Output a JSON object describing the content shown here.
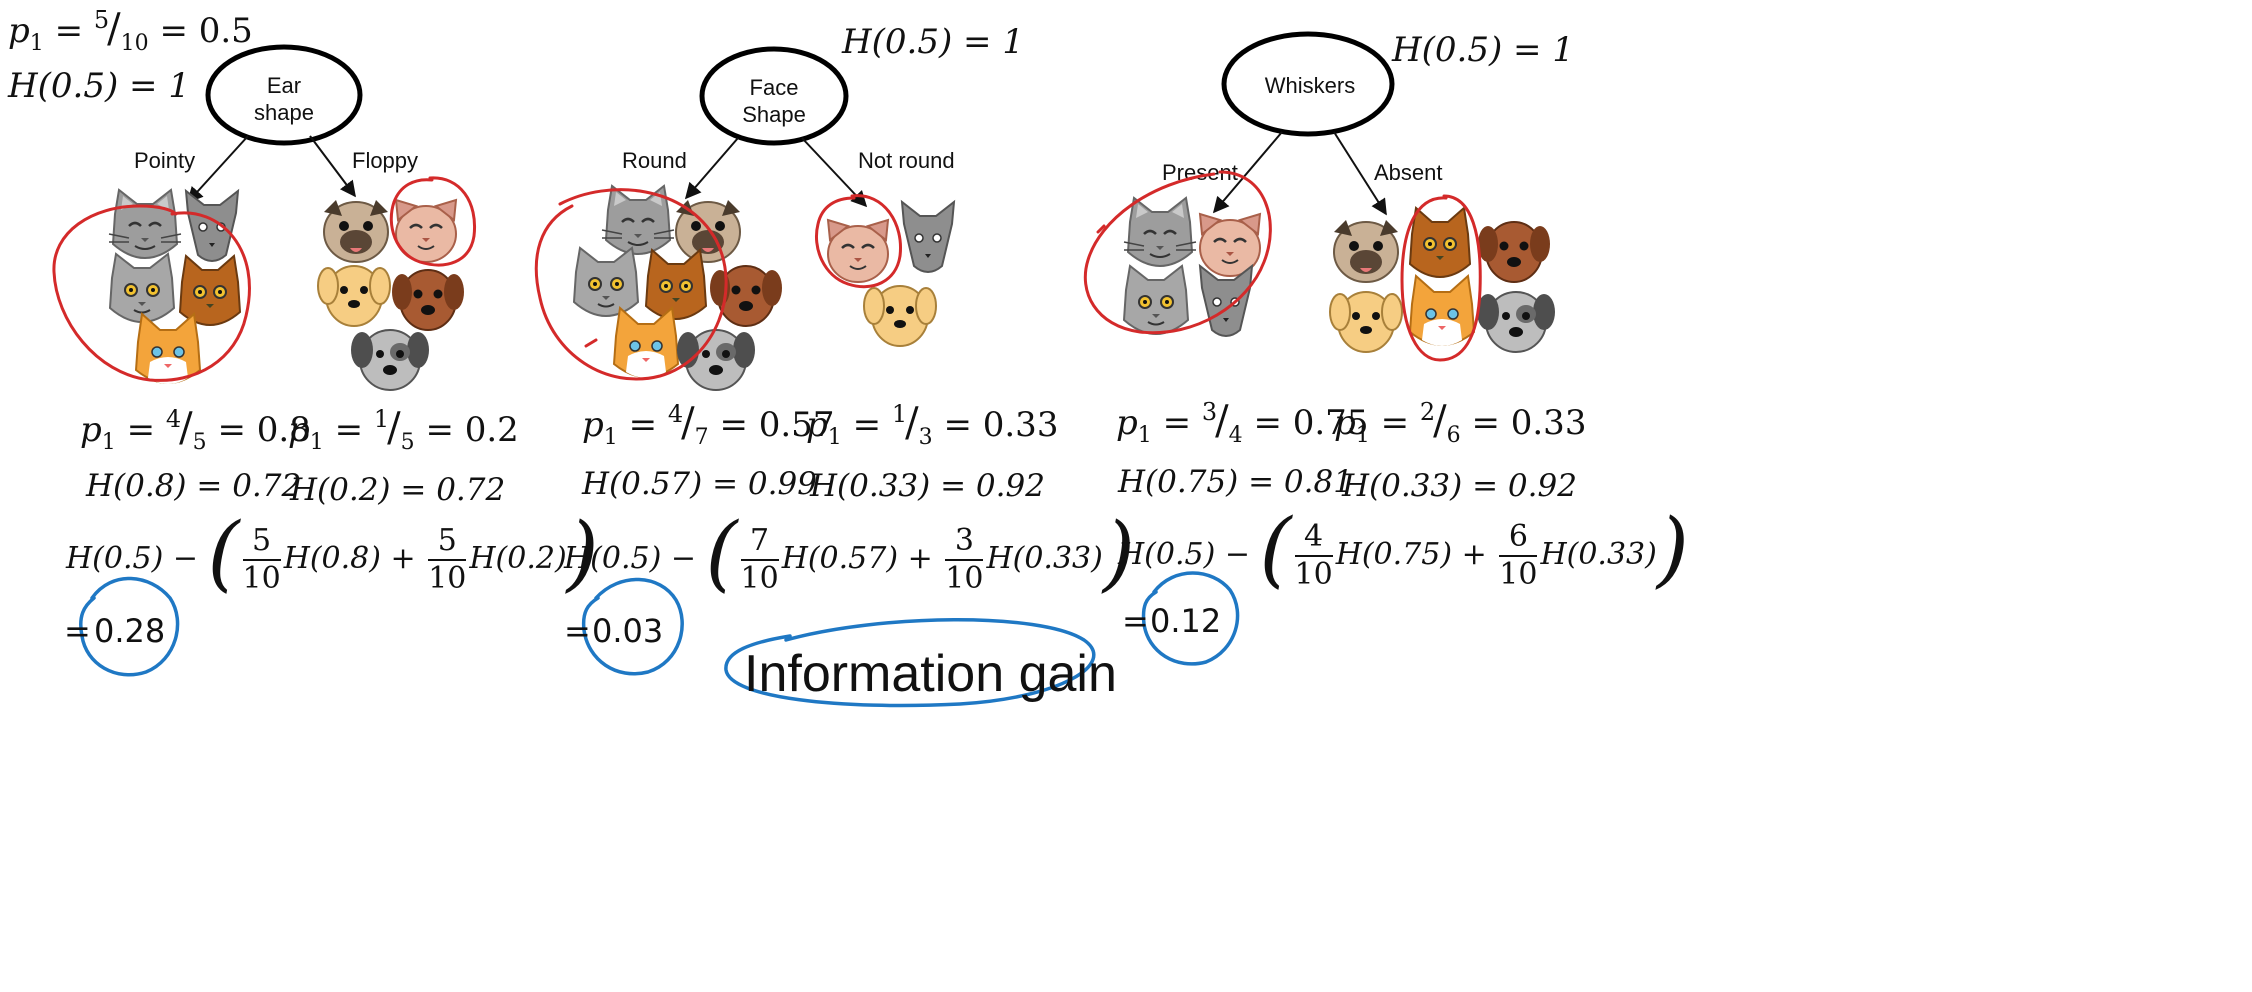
{
  "top_left": {
    "p1_prefix": "p",
    "p1_sub": "1",
    "p1_eq": " = ",
    "p1_num": "5",
    "p1_den": "10",
    "p1_val": " = 0.5",
    "h_root": "H(0.5) = 1"
  },
  "trees": [
    {
      "root_h": "",
      "node_line1": "Ear",
      "node_line2": "shape",
      "left_branch": "Pointy",
      "right_branch": "Floppy",
      "left_p_num": "4",
      "left_p_den": "5",
      "left_p_val": " = 0.8",
      "right_p_num": "1",
      "right_p_den": "5",
      "right_p_val": " = 0.2",
      "left_h": "H(0.8) = 0.72",
      "right_h": "H(0.2) = 0.72",
      "f1_num": "5",
      "f1_den": "10",
      "f1_h": "H(0.8)",
      "f2_num": "5",
      "f2_den": "10",
      "f2_h": "H(0.2)",
      "result": "0.28"
    },
    {
      "root_h": "H(0.5) = 1",
      "node_line1": "Face",
      "node_line2": "Shape",
      "left_branch": "Round",
      "right_branch": "Not round",
      "left_p_num": "4",
      "left_p_den": "7",
      "left_p_val": " = 0.57",
      "right_p_num": "1",
      "right_p_den": "3",
      "right_p_val": " = 0.33",
      "left_h": "H(0.57) = 0.99",
      "right_h": "H(0.33) = 0.92",
      "f1_num": "7",
      "f1_den": "10",
      "f1_h": "H(0.57)",
      "f2_num": "3",
      "f2_den": "10",
      "f2_h": "H(0.33)",
      "result": "0.03"
    },
    {
      "root_h": "H(0.5) = 1",
      "node_line1": "Whiskers",
      "node_line2": "",
      "left_branch": "Present",
      "right_branch": "Absent",
      "left_p_num": "3",
      "left_p_den": "4",
      "left_p_val": " = 0.75",
      "right_p_num": "2",
      "right_p_den": "6",
      "right_p_val": " = 0.33",
      "left_h": "H(0.75) = 0.81",
      "right_h": "H(0.33) = 0.92",
      "f1_num": "4",
      "f1_den": "10",
      "f1_h": "H(0.75)",
      "f2_num": "6",
      "f2_den": "10",
      "f2_h": "H(0.33)",
      "result": "0.12"
    }
  ],
  "formula": {
    "h_root": "H(0.5) − ",
    "plus": " + ",
    "equals": "="
  },
  "annotation": {
    "label": "Information gain"
  },
  "colors": {
    "red_ink": "#d42a2a",
    "blue_ink": "#1f78c4",
    "cat_gray": "#9a9a9a",
    "cat_orange": "#f3a43b",
    "cat_brown": "#b8651e",
    "dog_tan": "#c9b196",
    "dog_gold": "#f6cd83",
    "dog_brown": "#a85a32",
    "dog_pink": "#eab9a4"
  }
}
